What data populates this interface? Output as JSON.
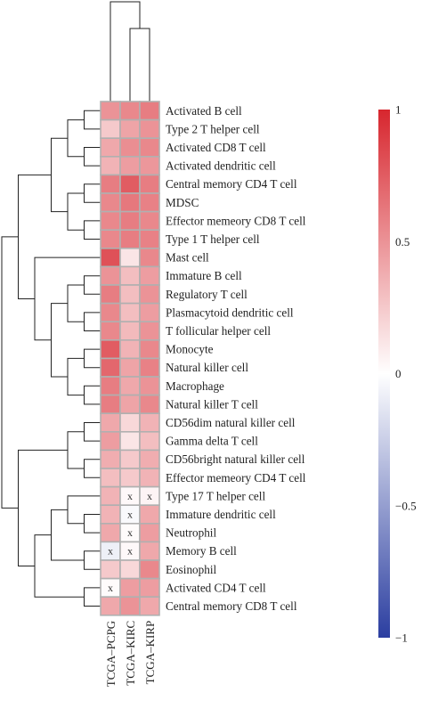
{
  "chart_data": {
    "type": "heatmap",
    "rows": [
      "Activated B cell",
      "Type 2 T helper cell",
      "Activated CD8 T cell",
      "Activated dendritic cell",
      "Central memory CD4 T cell",
      "MDSC",
      "Effector memeory CD8 T cell",
      "Type 1 T helper cell",
      "Mast cell",
      "Immature B cell",
      "Regulatory T cell",
      "Plasmacytoid dendritic cell",
      "T follicular helper cell",
      "Monocyte",
      "Natural killer cell",
      "Macrophage",
      "Natural killer T cell",
      "CD56dim natural killer cell",
      "Gamma delta T cell",
      "CD56bright natural killer cell",
      "Effector memeory CD4 T cell",
      "Type 17 T helper cell",
      "Immature dendritic cell",
      "Neutrophil",
      "Memory B cell",
      "Eosinophil",
      "Activated CD4 T cell",
      "Central memory CD8 T cell"
    ],
    "columns": [
      "TCGA–PCPG",
      "TCGA–KIRC",
      "TCGA–KIRP"
    ],
    "values": [
      [
        0.5,
        0.55,
        0.6
      ],
      [
        0.25,
        0.42,
        0.5
      ],
      [
        0.4,
        0.52,
        0.55
      ],
      [
        0.35,
        0.45,
        0.48
      ],
      [
        0.6,
        0.75,
        0.6
      ],
      [
        0.55,
        0.62,
        0.58
      ],
      [
        0.55,
        0.6,
        0.55
      ],
      [
        0.55,
        0.6,
        0.58
      ],
      [
        0.8,
        0.12,
        0.55
      ],
      [
        0.5,
        0.3,
        0.45
      ],
      [
        0.6,
        0.3,
        0.5
      ],
      [
        0.55,
        0.3,
        0.45
      ],
      [
        0.55,
        0.32,
        0.5
      ],
      [
        0.75,
        0.35,
        0.55
      ],
      [
        0.7,
        0.42,
        0.58
      ],
      [
        0.6,
        0.4,
        0.5
      ],
      [
        0.6,
        0.42,
        0.55
      ],
      [
        0.4,
        0.18,
        0.35
      ],
      [
        0.45,
        0.12,
        0.3
      ],
      [
        0.38,
        0.25,
        0.38
      ],
      [
        0.3,
        0.25,
        0.35
      ],
      [
        0.35,
        0.03,
        0.05
      ],
      [
        0.35,
        -0.03,
        0.4
      ],
      [
        0.4,
        0.02,
        0.45
      ],
      [
        -0.08,
        0.03,
        0.4
      ],
      [
        0.25,
        0.18,
        0.55
      ],
      [
        0.02,
        0.45,
        0.45
      ],
      [
        0.4,
        0.5,
        0.4
      ]
    ],
    "marks": [
      {
        "row": 21,
        "col": 1,
        "label": "x"
      },
      {
        "row": 21,
        "col": 2,
        "label": "x"
      },
      {
        "row": 22,
        "col": 1,
        "label": "x"
      },
      {
        "row": 23,
        "col": 1,
        "label": "x"
      },
      {
        "row": 24,
        "col": 0,
        "label": "x"
      },
      {
        "row": 24,
        "col": 1,
        "label": "x"
      },
      {
        "row": 26,
        "col": 0,
        "label": "x"
      }
    ],
    "colorbar": {
      "range": [
        -1,
        1
      ],
      "ticks": [
        1,
        0.5,
        0,
        -0.5,
        -1
      ],
      "tick_labels": [
        "1",
        "0.5",
        "0",
        "−0.5",
        "−1"
      ],
      "colors": {
        "low": "#2b3ea0",
        "mid": "#ffffff",
        "high": "#d7262e"
      }
    },
    "row_dendrogram": true,
    "column_dendrogram": true,
    "grid_color": "#b0b0b0",
    "title": "",
    "xlabel": "",
    "ylabel": ""
  }
}
